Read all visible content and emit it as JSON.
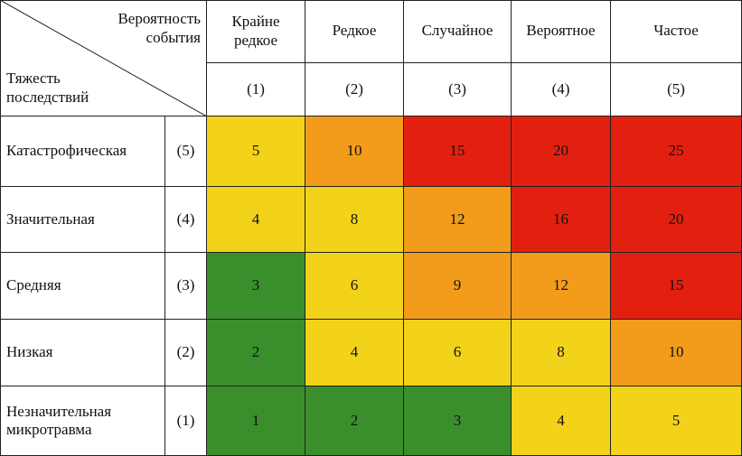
{
  "corner": {
    "probability_label": [
      "Вероятность",
      "события"
    ],
    "severity_label": [
      "Тяжесть",
      "последствий"
    ]
  },
  "columns": [
    {
      "name": [
        "Крайне",
        "редкое"
      ],
      "code": "(1)"
    },
    {
      "name": [
        "Редкое"
      ],
      "code": "(2)"
    },
    {
      "name": [
        "Случайное"
      ],
      "code": "(3)"
    },
    {
      "name": [
        "Вероятное"
      ],
      "code": "(4)"
    },
    {
      "name": [
        "Частое"
      ],
      "code": "(5)"
    }
  ],
  "rows": [
    {
      "name": [
        "Катастрофическая"
      ],
      "code": "(5)",
      "values": [
        "5",
        "10",
        "15",
        "20",
        "25"
      ],
      "levels": [
        "yellow",
        "orange",
        "red",
        "red",
        "red"
      ]
    },
    {
      "name": [
        "Значительная"
      ],
      "code": "(4)",
      "values": [
        "4",
        "8",
        "12",
        "16",
        "20"
      ],
      "levels": [
        "yellow",
        "yellow",
        "orange",
        "red",
        "red"
      ]
    },
    {
      "name": [
        "Средняя"
      ],
      "code": "(3)",
      "values": [
        "3",
        "6",
        "9",
        "12",
        "15"
      ],
      "levels": [
        "green",
        "yellow",
        "orange",
        "orange",
        "red"
      ]
    },
    {
      "name": [
        "Низкая"
      ],
      "code": "(2)",
      "values": [
        "2",
        "4",
        "6",
        "8",
        "10"
      ],
      "levels": [
        "green",
        "yellow",
        "yellow",
        "yellow",
        "orange"
      ]
    },
    {
      "name": [
        "Незначительная",
        "микротравма"
      ],
      "code": "(1)",
      "values": [
        "1",
        "2",
        "3",
        "4",
        "5"
      ],
      "levels": [
        "green",
        "green",
        "green",
        "yellow",
        "yellow"
      ]
    }
  ],
  "colors": {
    "green": "#3a8f2c",
    "yellow": "#f3d21a",
    "orange": "#f39c1b",
    "red": "#e3200f"
  }
}
